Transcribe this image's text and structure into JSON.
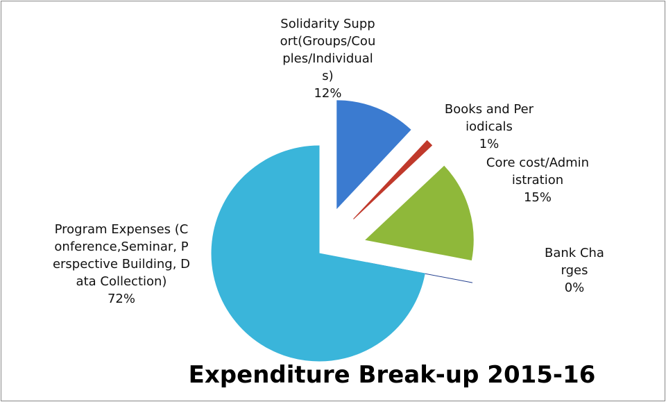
{
  "chart_data": {
    "type": "pie",
    "title": "Expenditure Break-up 2015-16",
    "categories": [
      "Solidarity Support(Groups/Couples/Individuals)",
      "Books and Periodicals",
      "Core cost/Administration",
      "Bank Charges",
      "Program Expenses (Conference,Seminar, Perspective Building, Data Collection)"
    ],
    "values": [
      12,
      1,
      15,
      0,
      72
    ],
    "value_labels": [
      "12%",
      "1%",
      "15%",
      "0%",
      "72%"
    ],
    "colors": [
      "#3b7bd0",
      "#c0392b",
      "#8fb83a",
      "#24408f",
      "#3ab5da"
    ]
  }
}
